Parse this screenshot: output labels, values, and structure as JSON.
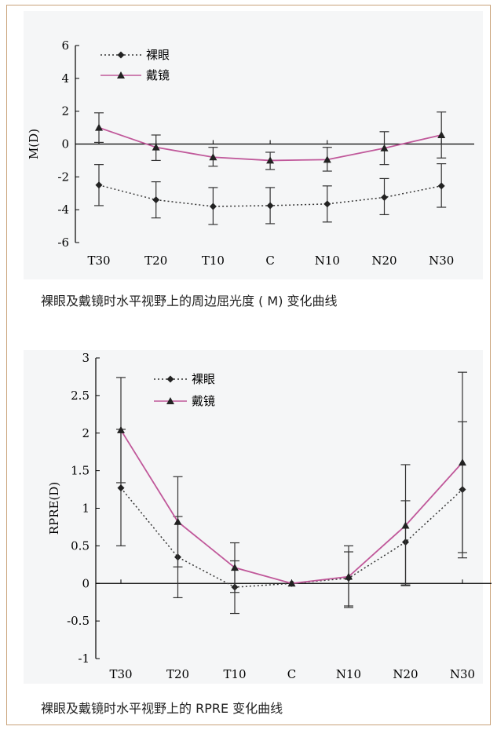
{
  "chart_data": [
    {
      "type": "line",
      "caption": "裸眼及戴镜时水平视野上的周边屈光度 ( M) 变化曲线",
      "ylabel": "M(D)",
      "xlabel": "",
      "categories": [
        "T30",
        "T20",
        "T10",
        "C",
        "N10",
        "N20",
        "N30"
      ],
      "ylim": [
        -6,
        6
      ],
      "yticks": [
        6,
        4,
        2,
        0,
        -2,
        -4,
        -6
      ],
      "grid": false,
      "legend_position": "top-left",
      "series": [
        {
          "name": "裸眼",
          "style": "dotted",
          "marker": "diamond",
          "color": "#333333",
          "values": [
            -2.5,
            -3.4,
            -3.8,
            -3.75,
            -3.65,
            -3.25,
            -2.55
          ],
          "err_low": [
            -3.75,
            -4.5,
            -4.9,
            -4.85,
            -4.75,
            -4.3,
            -3.85
          ],
          "err_high": [
            -1.25,
            -2.3,
            -2.65,
            -2.65,
            -2.55,
            -2.1,
            -1.2
          ]
        },
        {
          "name": "戴镜",
          "style": "solid",
          "marker": "triangle",
          "color": "#c0589a",
          "values": [
            1.0,
            -0.2,
            -0.8,
            -1.0,
            -0.95,
            -0.25,
            0.55
          ],
          "err_low": [
            0.1,
            -1.0,
            -1.35,
            -1.55,
            -1.65,
            -1.25,
            -0.85
          ],
          "err_high": [
            1.9,
            0.55,
            -0.2,
            -0.5,
            -0.2,
            0.75,
            1.95
          ]
        }
      ]
    },
    {
      "type": "line",
      "caption": "裸眼及戴镜时水平视野上的 RPRE 变化曲线",
      "ylabel": "RPRE(D)",
      "xlabel": "",
      "categories": [
        "T30",
        "T20",
        "T10",
        "C",
        "N10",
        "N20",
        "N30"
      ],
      "ylim": [
        -1,
        3
      ],
      "yticks": [
        "3",
        "2.5",
        "2",
        "1.5",
        "1",
        "0.5",
        "0",
        "-0.5",
        "-1"
      ],
      "grid": false,
      "legend_position": "top-left",
      "series": [
        {
          "name": "裸眼",
          "style": "dotted",
          "marker": "diamond",
          "color": "#333333",
          "values": [
            1.27,
            0.35,
            -0.05,
            0,
            0.07,
            0.55,
            1.25
          ],
          "err_low": [
            0.5,
            -0.19,
            -0.4,
            0,
            -0.3,
            -0.02,
            0.34
          ],
          "err_high": [
            2.05,
            0.89,
            0.3,
            0,
            0.42,
            1.1,
            2.15
          ]
        },
        {
          "name": "戴镜",
          "style": "solid",
          "marker": "triangle",
          "color": "#c0589a",
          "values": [
            2.04,
            0.82,
            0.21,
            0,
            0.09,
            0.77,
            1.61
          ],
          "err_low": [
            1.34,
            0.22,
            -0.12,
            0,
            -0.32,
            -0.03,
            0.41
          ],
          "err_high": [
            2.74,
            1.42,
            0.54,
            0,
            0.5,
            1.58,
            2.81
          ]
        }
      ]
    }
  ]
}
